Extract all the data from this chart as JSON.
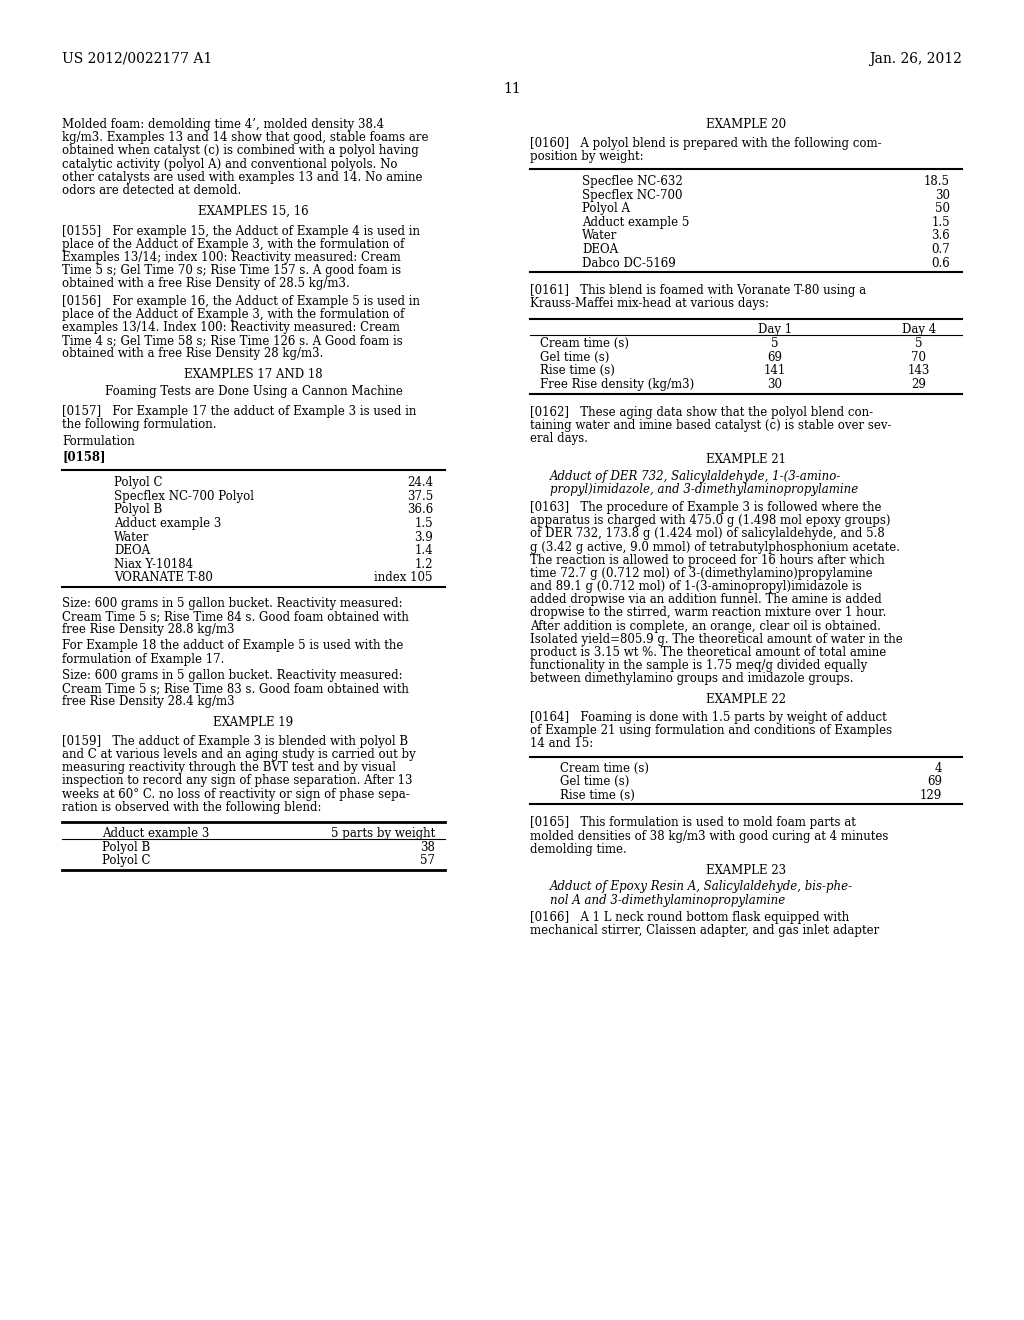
{
  "background_color": "#ffffff",
  "header_left": "US 2012/0022177 A1",
  "header_right": "Jan. 26, 2012",
  "page_number": "11",
  "left_column": {
    "blocks": [
      {
        "type": "paragraph",
        "text": "Molded foam: demolding time 4’, molded density 38.4\nkg/m3. Examples 13 and 14 show that good, stable foams are\nobtained when catalyst (c) is combined with a polyol having\ncatalytic activity (polyol A) and conventional polyols. No\nother catalysts are used with examples 13 and 14. No amine\nodors are detected at demold."
      },
      {
        "type": "heading_center",
        "text": "EXAMPLES 15, 16"
      },
      {
        "type": "paragraph",
        "text": "[0155]   For example 15, the Adduct of Example 4 is used in\nplace of the Adduct of Example 3, with the formulation of\nExamples 13/14; index 100: Reactivity measured: Cream\nTime 5 s; Gel Time 70 s; Rise Time 157 s. A good foam is\nobtained with a free Rise Density of 28.5 kg/m3."
      },
      {
        "type": "paragraph",
        "text": "[0156]   For example 16, the Adduct of Example 5 is used in\nplace of the Adduct of Example 3, with the formulation of\nexamples 13/14. Index 100: Reactivity measured: Cream\nTime 4 s; Gel Time 58 s; Rise Time 126 s. A Good foam is\nobtained with a free Rise Density 28 kg/m3."
      },
      {
        "type": "heading_center",
        "text": "EXAMPLES 17 AND 18"
      },
      {
        "type": "heading_center",
        "text": "Foaming Tests are Done Using a Cannon Machine"
      },
      {
        "type": "paragraph",
        "text": "[0157]   For Example 17 the adduct of Example 3 is used in\nthe following formulation."
      },
      {
        "type": "label",
        "text": "Formulation"
      },
      {
        "type": "label_bold",
        "text": "[0158]"
      },
      {
        "type": "table",
        "rows": [
          [
            "Polyol C",
            "24.4"
          ],
          [
            "Specflex NC-700 Polyol",
            "37.5"
          ],
          [
            "Polyol B",
            "36.6"
          ],
          [
            "Adduct example 3",
            "1.5"
          ],
          [
            "Water",
            "3.9"
          ],
          [
            "DEOA",
            "1.4"
          ],
          [
            "Niax Y-10184",
            "1.2"
          ],
          [
            "VORANATE T-80",
            "index 105"
          ]
        ]
      },
      {
        "type": "paragraph",
        "text": "Size: 600 grams in 5 gallon bucket. Reactivity measured:\nCream Time 5 s; Rise Time 84 s. Good foam obtained with\nfree Rise Density 28.8 kg/m3"
      },
      {
        "type": "paragraph",
        "text": "For Example 18 the adduct of Example 5 is used with the\nformulation of Example 17."
      },
      {
        "type": "paragraph",
        "text": "Size: 600 grams in 5 gallon bucket. Reactivity measured:\nCream Time 5 s; Rise Time 83 s. Good foam obtained with\nfree Rise Density 28.4 kg/m3"
      },
      {
        "type": "heading_center",
        "text": "EXAMPLE 19"
      },
      {
        "type": "paragraph",
        "text": "[0159]   The adduct of Example 3 is blended with polyol B\nand C at various levels and an aging study is carried out by\nmeasuring reactivity through the BVT test and by visual\ninspection to record any sign of phase separation. After 13\nweeks at 60° C. no loss of reactivity or sign of phase sepa-\nration is observed with the following blend:"
      },
      {
        "type": "table2",
        "header": [
          "Adduct example 3",
          "5 parts by weight"
        ],
        "rows": [
          [
            "Polyol B",
            "38"
          ],
          [
            "Polyol C",
            "57"
          ]
        ]
      }
    ]
  },
  "right_column": {
    "blocks": [
      {
        "type": "heading_center",
        "text": "EXAMPLE 20"
      },
      {
        "type": "paragraph",
        "text": "[0160]   A polyol blend is prepared with the following com-\nposition by weight:"
      },
      {
        "type": "table",
        "rows": [
          [
            "Specflee NC-632",
            "18.5"
          ],
          [
            "Specflex NC-700",
            "30"
          ],
          [
            "Polyol A",
            "50"
          ],
          [
            "Adduct example 5",
            "1.5"
          ],
          [
            "Water",
            "3.6"
          ],
          [
            "DEOA",
            "0.7"
          ],
          [
            "Dabco DC-5169",
            "0.6"
          ]
        ]
      },
      {
        "type": "paragraph",
        "text": "[0161]   This blend is foamed with Voranate T-80 using a\nKrauss-Maffei mix-head at various days:"
      },
      {
        "type": "table_header",
        "headers": [
          "",
          "Day 1",
          "Day 4"
        ],
        "rows": [
          [
            "Cream time (s)",
            "5",
            "5"
          ],
          [
            "Gel time (s)",
            "69",
            "70"
          ],
          [
            "Rise time (s)",
            "141",
            "143"
          ],
          [
            "Free Rise density (kg/m3)",
            "30",
            "29"
          ]
        ]
      },
      {
        "type": "paragraph",
        "text": "[0162]   These aging data show that the polyol blend con-\ntaining water and imine based catalyst (c) is stable over sev-\neral days."
      },
      {
        "type": "heading_center",
        "text": "EXAMPLE 21"
      },
      {
        "type": "heading_center_italic",
        "text": "Adduct of DER 732, Salicylaldehyde, 1-(3-amino-\npropyl)imidazole, and 3-dimethylaminopropylamine"
      },
      {
        "type": "paragraph",
        "text": "[0163]   The procedure of Example 3 is followed where the\napparatus is charged with 475.0 g (1.498 mol epoxy groups)\nof DER 732, 173.8 g (1.424 mol) of salicylaldehyde, and 5.8\ng (3.42 g active, 9.0 mmol) of tetrabutylphosphonium acetate.\nThe reaction is allowed to proceed for 16 hours after which\ntime 72.7 g (0.712 mol) of 3-(dimethylamino)propylamine\nand 89.1 g (0.712 mol) of 1-(3-aminopropyl)imidazole is\nadded dropwise via an addition funnel. The amine is added\ndropwise to the stirred, warm reaction mixture over 1 hour.\nAfter addition is complete, an orange, clear oil is obtained.\nIsolated yield=805.9 g. The theoretical amount of water in the\nproduct is 3.15 wt %. The theoretical amount of total amine\nfunctionality in the sample is 1.75 meq/g divided equally\nbetween dimethylamino groups and imidazole groups."
      },
      {
        "type": "heading_center",
        "text": "EXAMPLE 22"
      },
      {
        "type": "paragraph",
        "text": "[0164]   Foaming is done with 1.5 parts by weight of adduct\nof Example 21 using formulation and conditions of Examples\n14 and 15:"
      },
      {
        "type": "table_simple",
        "rows": [
          [
            "Cream time (s)",
            "4"
          ],
          [
            "Gel time (s)",
            "69"
          ],
          [
            "Rise time (s)",
            "129"
          ]
        ]
      },
      {
        "type": "paragraph",
        "text": "[0165]   This formulation is used to mold foam parts at\nmolded densities of 38 kg/m3 with good curing at 4 minutes\ndemolding time."
      },
      {
        "type": "heading_center",
        "text": "EXAMPLE 23"
      },
      {
        "type": "heading_center_italic",
        "text": "Adduct of Epoxy Resin A, Salicylaldehyde, bis-phe-\nnol A and 3-dimethylaminopropylamine"
      },
      {
        "type": "paragraph",
        "text": "[0166]   A 1 L neck round bottom flask equipped with\nmechanical stirrer, Claissen adapter, and gas inlet adapter"
      }
    ]
  }
}
